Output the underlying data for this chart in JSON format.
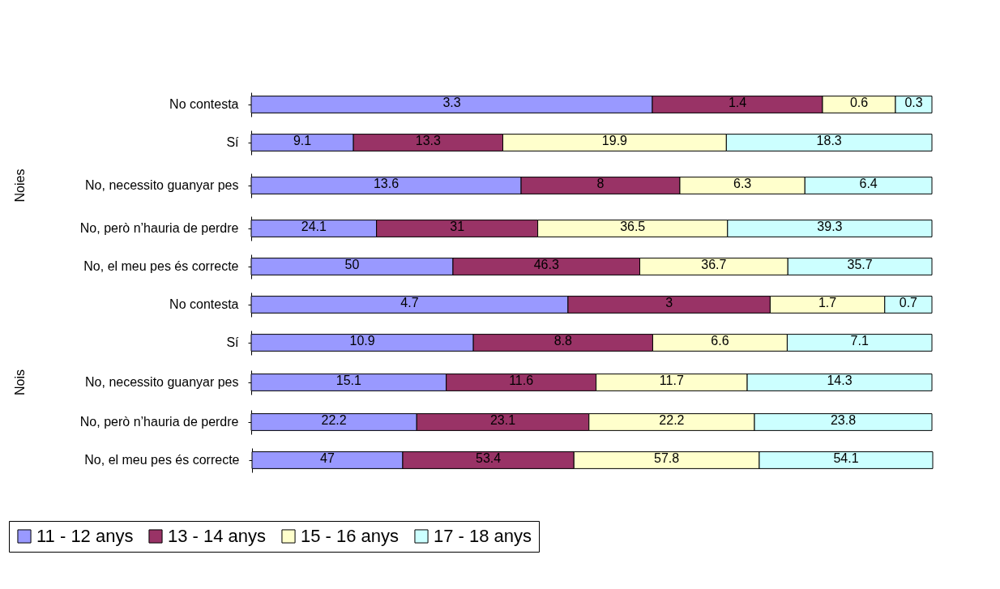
{
  "chart_data": [
    {
      "type": "bar",
      "orientation": "horizontal",
      "stacked": true,
      "data_labels": true,
      "tick_labels": "y",
      "categories": [
        "No contesta"
      ],
      "series": [
        {
          "color": "#9999ff",
          "values": [
            3.3
          ]
        },
        {
          "color": "#993366",
          "values": [
            1.4
          ]
        },
        {
          "color": "#ffffcc",
          "values": [
            0.6
          ]
        },
        {
          "color": "#ccffff",
          "values": [
            0.3
          ]
        }
      ]
    },
    {
      "type": "bar",
      "orientation": "horizontal",
      "stacked": true,
      "data_labels": true,
      "tick_labels": "y",
      "categories": [
        "Sí"
      ],
      "series": [
        {
          "color": "#9999ff",
          "values": [
            9.1
          ]
        },
        {
          "color": "#993366",
          "values": [
            13.3
          ]
        },
        {
          "color": "#ffffcc",
          "values": [
            19.9
          ]
        },
        {
          "color": "#ccffff",
          "values": [
            18.3
          ]
        }
      ]
    },
    {
      "type": "bar",
      "orientation": "horizontal",
      "stacked": true,
      "data_labels": true,
      "tick_labels": "y",
      "annotations": [
        "Noies"
      ],
      "categories": [
        "No, necessito guanyar pes"
      ],
      "series": [
        {
          "color": "#9999ff",
          "values": [
            13.6
          ]
        },
        {
          "color": "#993366",
          "values": [
            8
          ]
        },
        {
          "color": "#ffffcc",
          "values": [
            6.3
          ]
        },
        {
          "color": "#ccffff",
          "values": [
            6.4
          ]
        }
      ]
    },
    {
      "type": "bar",
      "orientation": "horizontal",
      "stacked": true,
      "data_labels": true,
      "tick_labels": "y",
      "categories": [
        "No, però n’hauria de perdre"
      ],
      "series": [
        {
          "color": "#9999ff",
          "values": [
            24.1
          ]
        },
        {
          "color": "#993366",
          "values": [
            31
          ]
        },
        {
          "color": "#ffffcc",
          "values": [
            36.5
          ]
        },
        {
          "color": "#ccffff",
          "values": [
            39.3
          ]
        }
      ]
    },
    {
      "type": "bar",
      "orientation": "horizontal",
      "stacked": true,
      "data_labels": true,
      "tick_labels": "y",
      "categories": [
        "No, el meu pes és correcte"
      ],
      "series": [
        {
          "color": "#9999ff",
          "values": [
            50
          ]
        },
        {
          "color": "#993366",
          "values": [
            46.3
          ]
        },
        {
          "color": "#ffffcc",
          "values": [
            36.7
          ]
        },
        {
          "color": "#ccffff",
          "values": [
            35.7
          ]
        }
      ]
    },
    {
      "type": "bar",
      "orientation": "horizontal",
      "stacked": true,
      "data_labels": true,
      "tick_labels": "y",
      "categories": [
        "No contesta"
      ],
      "series": [
        {
          "color": "#9999ff",
          "values": [
            4.7
          ]
        },
        {
          "color": "#993366",
          "values": [
            3
          ]
        },
        {
          "color": "#ffffcc",
          "values": [
            1.7
          ]
        },
        {
          "color": "#ccffff",
          "values": [
            0.7
          ]
        }
      ]
    },
    {
      "type": "bar",
      "orientation": "horizontal",
      "stacked": true,
      "data_labels": true,
      "tick_labels": "y",
      "categories": [
        "Sí"
      ],
      "series": [
        {
          "color": "#9999ff",
          "values": [
            10.9
          ]
        },
        {
          "color": "#993366",
          "values": [
            8.8
          ]
        },
        {
          "color": "#ffffcc",
          "values": [
            6.6
          ]
        },
        {
          "color": "#ccffff",
          "values": [
            7.1
          ]
        }
      ]
    },
    {
      "type": "bar",
      "orientation": "horizontal",
      "stacked": true,
      "data_labels": true,
      "tick_labels": "y",
      "annotations": [
        "Nois"
      ],
      "categories": [
        "No, necessito guanyar pes"
      ],
      "series": [
        {
          "color": "#9999ff",
          "values": [
            15.1
          ]
        },
        {
          "color": "#993366",
          "values": [
            11.6
          ]
        },
        {
          "color": "#ffffcc",
          "values": [
            11.7
          ]
        },
        {
          "color": "#ccffff",
          "values": [
            14.3
          ]
        }
      ]
    },
    {
      "type": "bar",
      "orientation": "horizontal",
      "stacked": true,
      "data_labels": true,
      "tick_labels": "y",
      "categories": [
        "No, però n’hauria de perdre"
      ],
      "series": [
        {
          "color": "#9999ff",
          "values": [
            22.2
          ]
        },
        {
          "color": "#993366",
          "values": [
            23.1
          ]
        },
        {
          "color": "#ffffcc",
          "values": [
            22.2
          ]
        },
        {
          "color": "#ccffff",
          "values": [
            23.8
          ]
        }
      ]
    },
    {
      "type": "bar",
      "orientation": "horizontal",
      "stacked": true,
      "data_labels": true,
      "tick_labels": "y",
      "legend": "bottom",
      "categories": [
        "No, el meu pes és correcte"
      ],
      "series": [
        {
          "name": "11 - 12 anys",
          "color": "#9999ff",
          "values": [
            47
          ]
        },
        {
          "name": "13 - 14 anys",
          "color": "#993366",
          "values": [
            53.4
          ]
        },
        {
          "name": "15 - 16 anys",
          "color": "#ffffcc",
          "values": [
            57.8
          ]
        },
        {
          "name": "17 - 18 anys",
          "color": "#ccffff",
          "values": [
            54.1
          ]
        }
      ]
    }
  ]
}
